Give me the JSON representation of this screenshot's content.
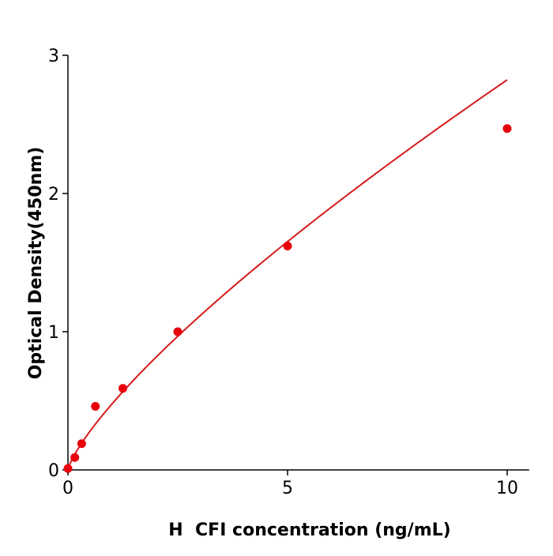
{
  "chart_data": {
    "type": "scatter",
    "title": "",
    "xlabel": "H  CFI concentration (ng/mL)",
    "ylabel": "Optical Density(450nm)",
    "xlim": [
      0,
      10.5
    ],
    "ylim": [
      0,
      3
    ],
    "xticks": [
      0,
      5,
      10
    ],
    "yticks": [
      0,
      1,
      2,
      3
    ],
    "grid": false,
    "series": [
      {
        "x": [
          0,
          0.156,
          0.3125,
          0.625,
          1.25,
          2.5,
          5,
          10
        ],
        "y": [
          0.01,
          0.09,
          0.19,
          0.46,
          0.59,
          1.0,
          1.62,
          2.47
        ],
        "color": "#e8000b",
        "fit_color": "#d41a1a",
        "fit": "curve"
      }
    ]
  }
}
